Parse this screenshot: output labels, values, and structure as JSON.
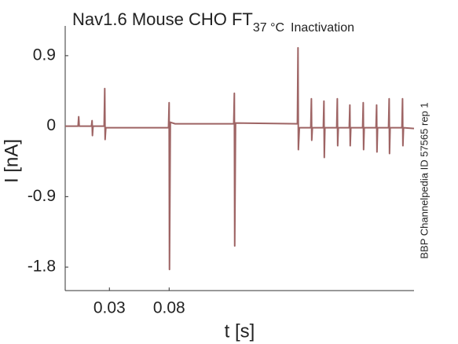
{
  "chart_data": {
    "type": "line",
    "title": "Nav1.6  Mouse  CHO FT",
    "title_subscript": "37 °C",
    "subtitle": "Inactivation",
    "annotation": "BBP Channelpedia ID 57565 rep 1",
    "xlabel": "t [s]",
    "ylabel": "I [nA]",
    "color": "#9e6464",
    "xlim": [
      -0.007,
      0.285
    ],
    "ylim": [
      -2.1,
      1.28
    ],
    "xticks": [
      0.03,
      0.08
    ],
    "yticks": [
      0.9,
      0,
      -0.9,
      -1.8
    ],
    "x": [
      -0.007,
      0.0038,
      0.0043,
      0.0047,
      0.015,
      0.0155,
      0.0158,
      0.0163,
      0.0256,
      0.0261,
      0.0264,
      0.027,
      0.0795,
      0.08,
      0.0803,
      0.081,
      0.085,
      0.1341,
      0.1346,
      0.1349,
      0.1356,
      0.1874,
      0.1879,
      0.1882,
      0.189,
      0.1986,
      0.1991,
      0.1994,
      0.1999,
      0.2091,
      0.2096,
      0.2099,
      0.2104,
      0.2203,
      0.2208,
      0.2211,
      0.2216,
      0.2308,
      0.2313,
      0.2316,
      0.2321,
      0.242,
      0.2425,
      0.2428,
      0.2433,
      0.2532,
      0.2537,
      0.254,
      0.2545,
      0.2637,
      0.2642,
      0.2645,
      0.265,
      0.2749,
      0.2754,
      0.2757,
      0.2762,
      0.285
    ],
    "values": [
      0,
      0,
      0.12,
      0,
      0,
      0.07,
      -0.12,
      0,
      0,
      0.48,
      -0.17,
      -0.02,
      -0.02,
      0.3,
      -1.83,
      0.05,
      0.03,
      0.03,
      0.42,
      -1.53,
      0.04,
      0.03,
      1.0,
      -0.3,
      -0.02,
      -0.02,
      0.35,
      -0.18,
      -0.02,
      -0.02,
      0.32,
      -0.4,
      -0.02,
      -0.02,
      0.35,
      -0.25,
      -0.02,
      -0.02,
      0.27,
      -0.25,
      -0.02,
      -0.02,
      0.3,
      -0.3,
      -0.02,
      -0.02,
      0.27,
      -0.33,
      -0.02,
      -0.02,
      0.35,
      -0.35,
      -0.02,
      -0.02,
      0.35,
      -0.25,
      -0.02,
      -0.03
    ]
  }
}
